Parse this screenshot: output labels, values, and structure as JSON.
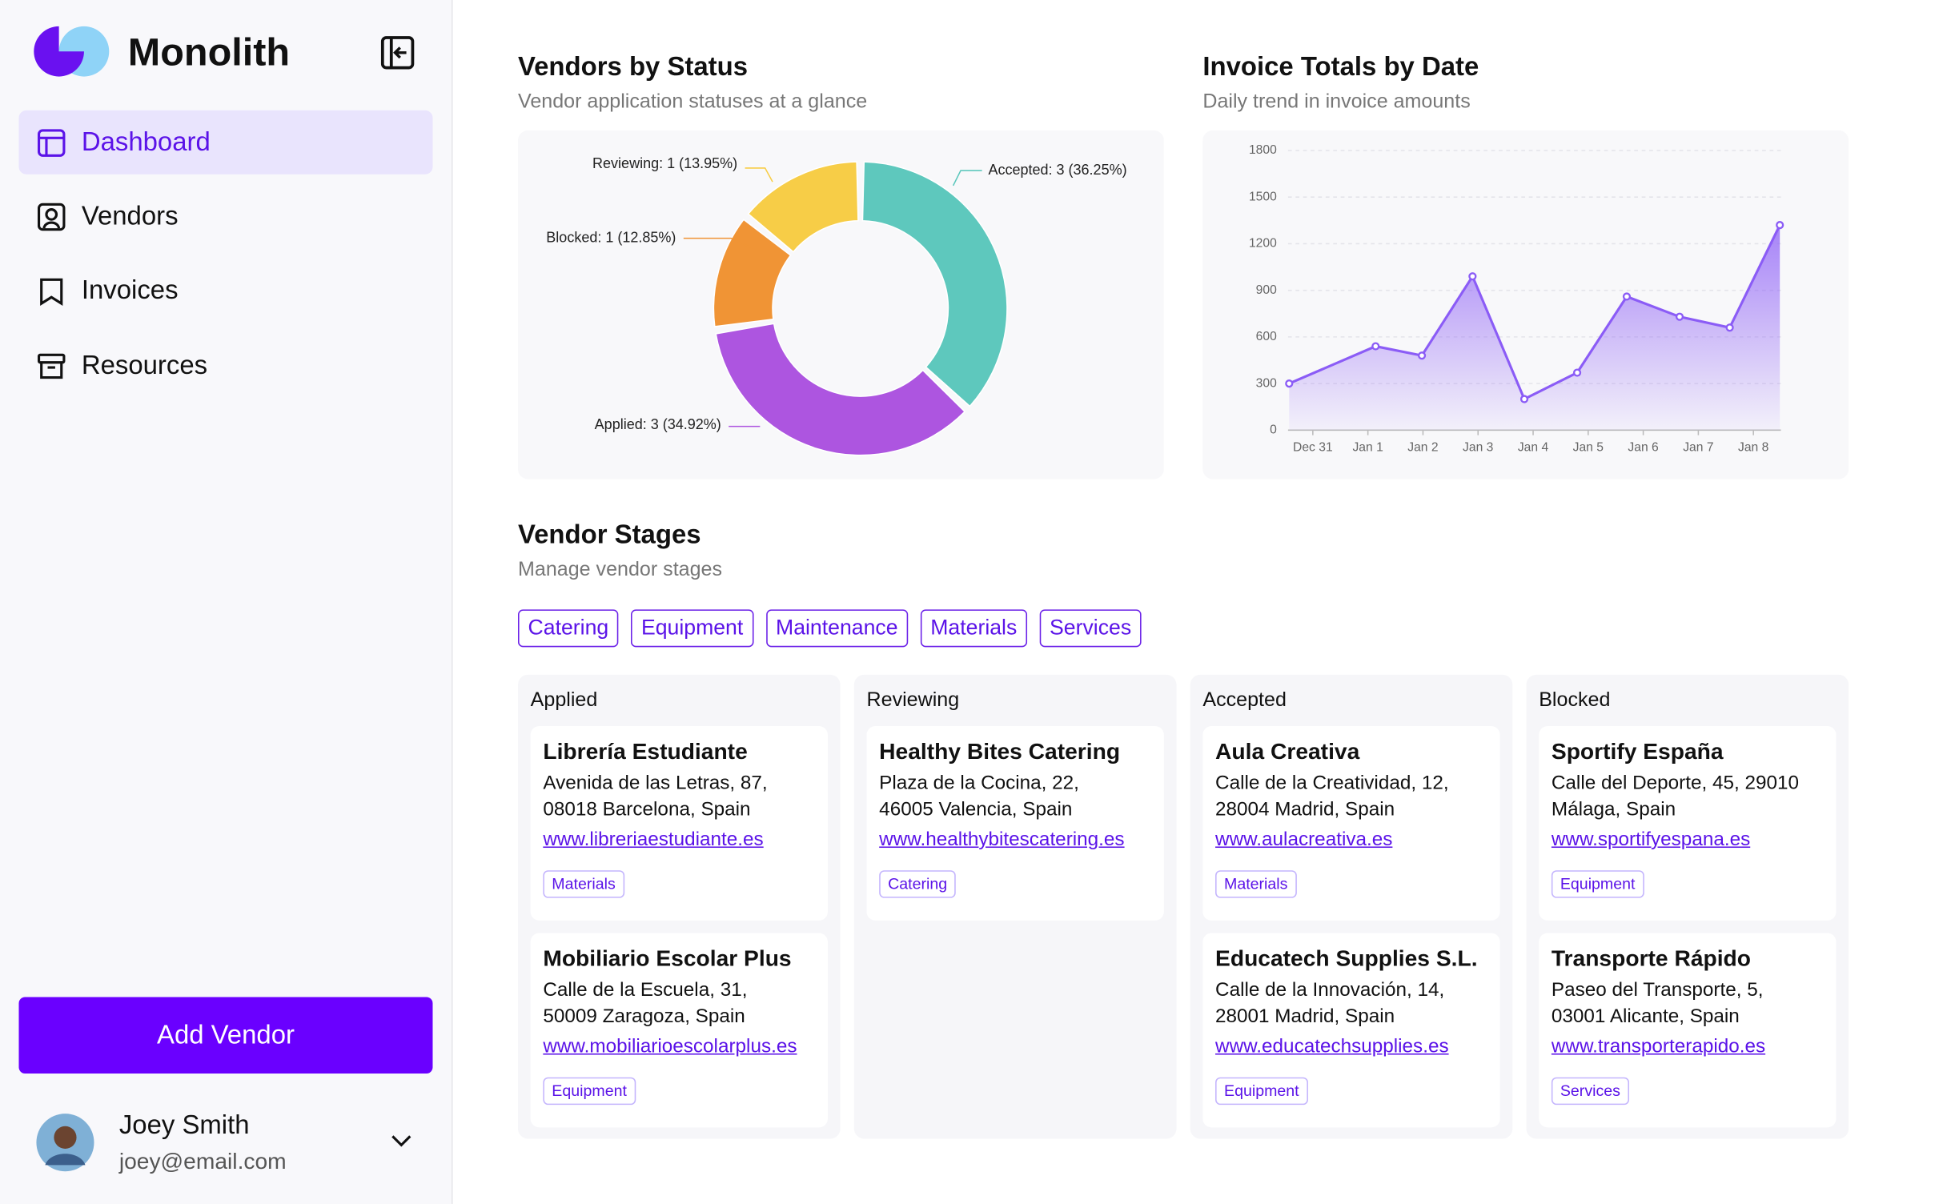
{
  "sidebar": {
    "brand": "Monolith",
    "nav": [
      "Dashboard",
      "Vendors",
      "Invoices",
      "Resources"
    ],
    "button": "Add Vendor",
    "user": {
      "name": "Joey Smith",
      "email": "joey@email.com"
    }
  },
  "chart_data": [
    {
      "type": "pie",
      "title": "Vendors by Status",
      "subtitle": "Vendor application statuses at a glance",
      "values": [
        36.25,
        34.92,
        12.85,
        13.95
      ],
      "value_labels": [
        "Accepted: 3 (36.25%)",
        "Applied: 3 (34.92%)",
        "Blocked: 1 (12.85%)",
        "Reviewing: 1 (13.95%)"
      ],
      "colors": [
        "#5ec8bd",
        "#ad55e0",
        "#f09435",
        "#f7cd47"
      ]
    },
    {
      "type": "line",
      "title": "Invoice Totals by Date",
      "subtitle": "Daily trend in invoice amounts",
      "x": [
        -0.43,
        1.14,
        1.98,
        2.9,
        3.84,
        4.8,
        5.7,
        6.66,
        7.57,
        8.48
      ],
      "values": [
        300,
        540,
        480,
        990,
        200,
        370,
        860,
        730,
        660,
        1320
      ],
      "xlim": [
        -0.45,
        8.5
      ],
      "xticks": [
        {
          "value": 0,
          "label": "Dec 31"
        },
        {
          "value": 1,
          "label": "Jan 1"
        },
        {
          "value": 2,
          "label": "Jan 2"
        },
        {
          "value": 3,
          "label": "Jan 3"
        },
        {
          "value": 4,
          "label": "Jan 4"
        },
        {
          "value": 5,
          "label": "Jan 5"
        },
        {
          "value": 6,
          "label": "Jan 6"
        },
        {
          "value": 7,
          "label": "Jan 7"
        },
        {
          "value": 8,
          "label": "Jan 8"
        }
      ],
      "ylim": [
        0,
        1800
      ],
      "yticks": [
        0,
        300,
        600,
        900,
        1200,
        1500,
        1800
      ],
      "color": "#8b5cf6",
      "grid": true
    }
  ],
  "stages": {
    "title": "Vendor Stages",
    "subtitle": "Manage vendor stages",
    "filters": [
      "Catering",
      "Equipment",
      "Maintenance",
      "Materials",
      "Services"
    ],
    "columns": [
      {
        "name": "Applied",
        "cards": [
          {
            "name": "Librería Estudiante",
            "address": [
              "Avenida de las Letras, 87,",
              "08018 Barcelona, Spain"
            ],
            "url": "www.libreriaestudiante.es",
            "tag": "Materials"
          },
          {
            "name": "Mobiliario Escolar Plus",
            "address": [
              "Calle de la Escuela, 31,",
              "50009 Zaragoza, Spain"
            ],
            "url": "www.mobiliarioescolarplus.es",
            "tag": "Equipment"
          }
        ]
      },
      {
        "name": "Reviewing",
        "cards": [
          {
            "name": "Healthy Bites Catering",
            "address": [
              "Plaza de la Cocina, 22,",
              "46005 Valencia, Spain"
            ],
            "url": "www.healthybitescatering.es",
            "tag": "Catering"
          }
        ]
      },
      {
        "name": "Accepted",
        "cards": [
          {
            "name": "Aula Creativa",
            "address": [
              "Calle de la Creatividad, 12,",
              "28004 Madrid, Spain"
            ],
            "url": "www.aulacreativa.es",
            "tag": "Materials"
          },
          {
            "name": "Educatech Supplies S.L.",
            "address": [
              "Calle de la Innovación, 14,",
              "28001 Madrid, Spain"
            ],
            "url": "www.educatechsupplies.es",
            "tag": "Equipment"
          }
        ]
      },
      {
        "name": "Blocked",
        "cards": [
          {
            "name": "Sportify España",
            "address": [
              "Calle del Deporte, 45, 29010",
              "Málaga, Spain"
            ],
            "url": "www.sportifyespana.es",
            "tag": "Equipment"
          },
          {
            "name": "Transporte Rápido",
            "address": [
              "Paseo del Transporte, 5,",
              "03001 Alicante, Spain"
            ],
            "url": "www.transporterapido.es",
            "tag": "Services"
          }
        ]
      }
    ]
  }
}
